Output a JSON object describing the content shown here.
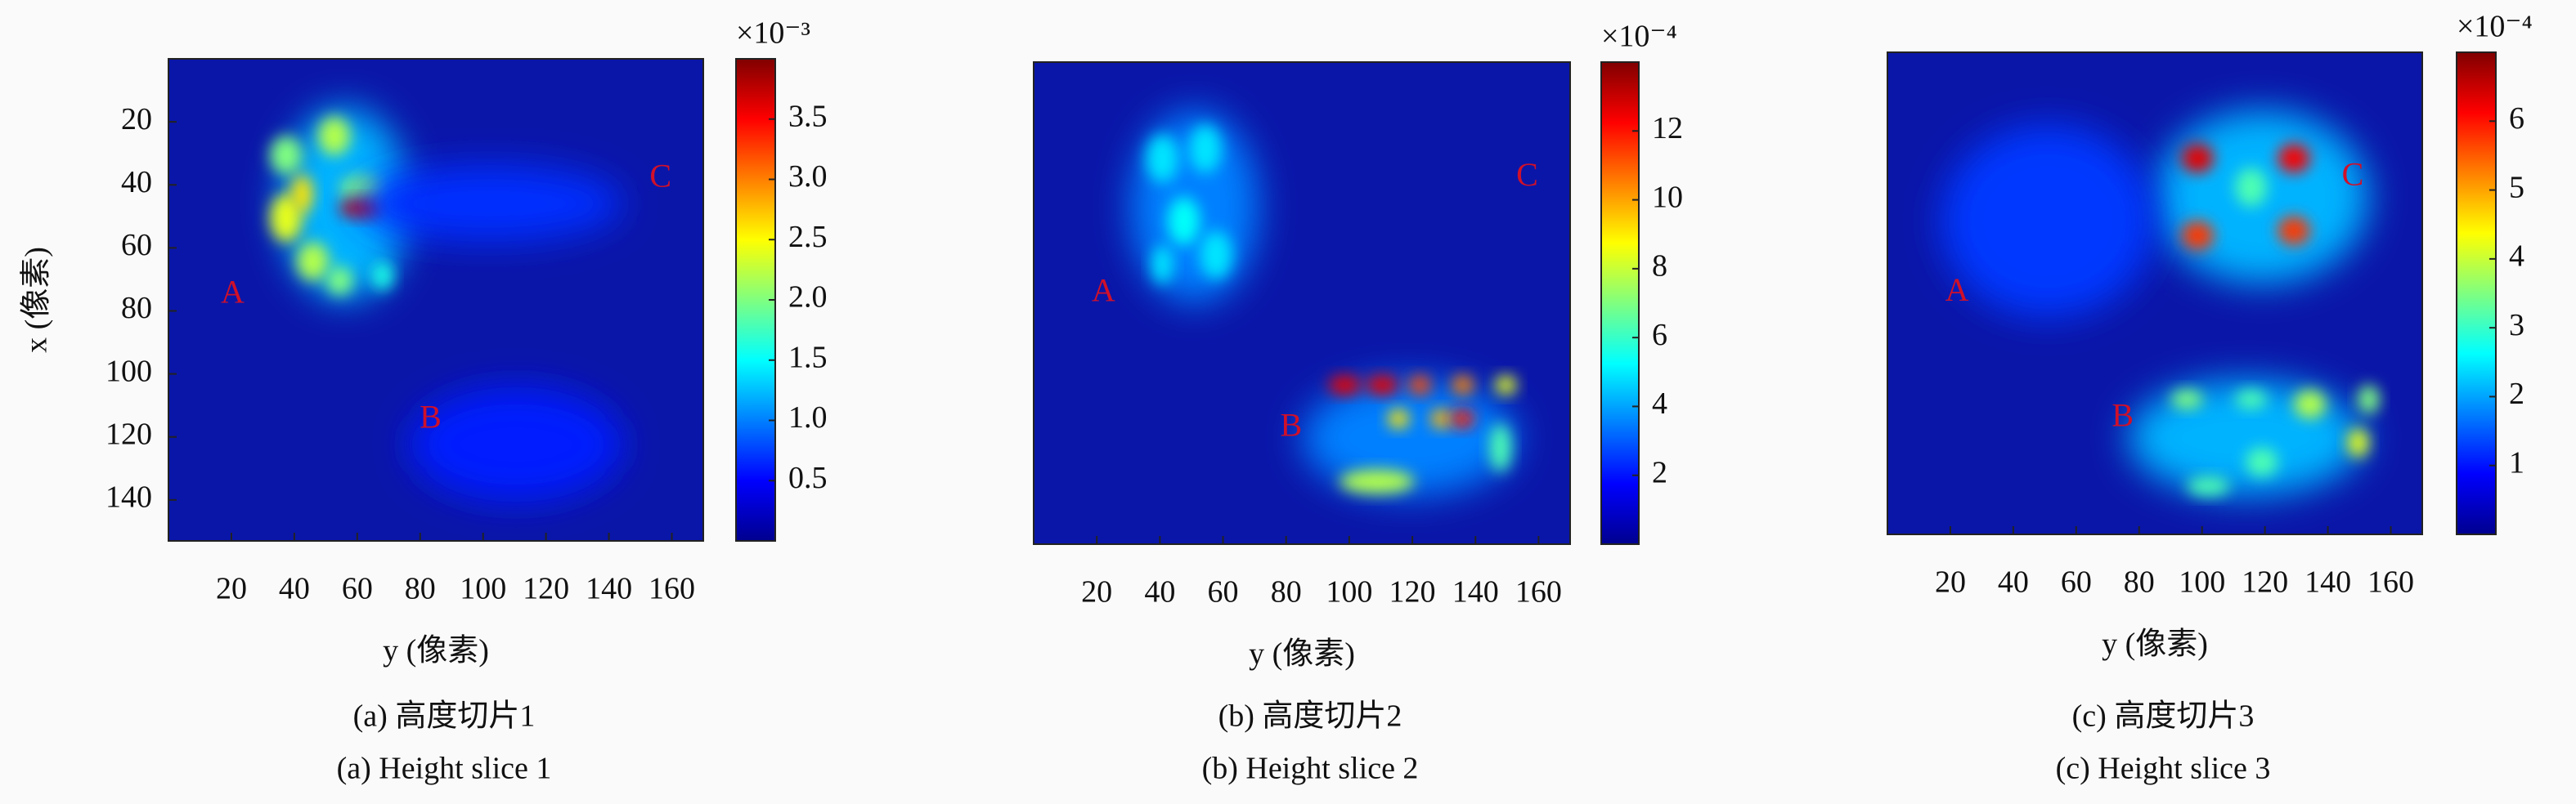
{
  "chart_data": [
    {
      "type": "heatmap",
      "title": "(a) 高度切片1",
      "subtitle": "(a) Height slice 1",
      "xlabel": "y (像素)",
      "ylabel": "x (像素)",
      "xlim": [
        0,
        170
      ],
      "xticks": [
        20,
        40,
        60,
        80,
        100,
        120,
        140,
        160
      ],
      "ylim": [
        0,
        153
      ],
      "yticks": [
        20,
        40,
        60,
        80,
        100,
        120,
        140
      ],
      "y_reversed": true,
      "colormap": "jet",
      "colorbar": {
        "clim": [
          0,
          4.0
        ],
        "multiplier": "×10⁻³",
        "ticks": [
          0.5,
          {
            "value": 1,
            "label": "1.0"
          },
          1.5,
          {
            "value": 2,
            "label": "2.0"
          },
          2.5,
          {
            "value": 3,
            "label": "3.0"
          },
          3.5
        ]
      },
      "annotations": [
        "A",
        "B",
        "C"
      ]
    },
    {
      "type": "heatmap",
      "title": "(b) 高度切片2",
      "subtitle": "(b) Height slice 2",
      "xlabel": "y (像素)",
      "xlim": [
        0,
        170
      ],
      "xticks": [
        20,
        40,
        60,
        80,
        100,
        120,
        140,
        160
      ],
      "colormap": "jet",
      "colorbar": {
        "clim": [
          0,
          14
        ],
        "multiplier": "×10⁻⁴",
        "ticks": [
          2,
          4,
          6,
          8,
          10,
          12
        ]
      },
      "annotations": [
        "A",
        "B",
        "C"
      ]
    },
    {
      "type": "heatmap",
      "title": "(c) 高度切片3",
      "subtitle": "(c) Height slice 3",
      "xlabel": "y (像素)",
      "xlim": [
        0,
        170
      ],
      "xticks": [
        20,
        40,
        60,
        80,
        100,
        120,
        140,
        160
      ],
      "colormap": "jet",
      "colorbar": {
        "clim": [
          0,
          7
        ],
        "multiplier": "×10⁻⁴",
        "ticks": [
          1,
          2,
          3,
          4,
          5,
          6
        ]
      },
      "annotations": [
        "A",
        "B",
        "C"
      ]
    }
  ]
}
